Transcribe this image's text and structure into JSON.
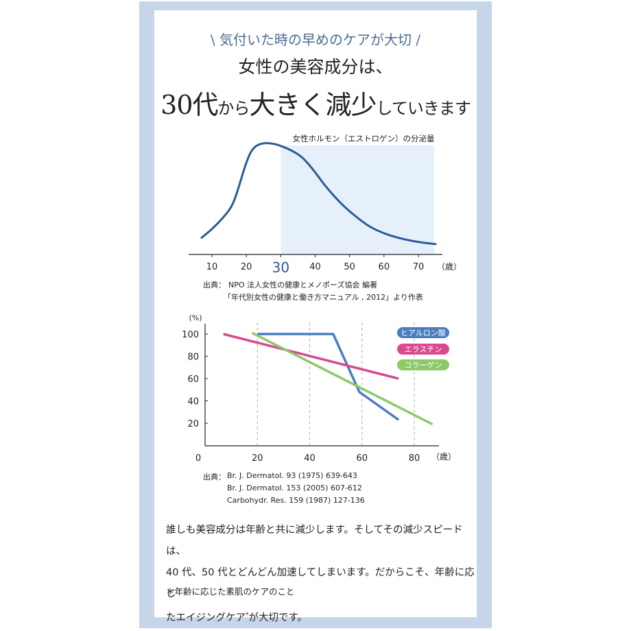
{
  "header": {
    "tagline_slash_left": "\\",
    "tagline": "気付いた時の早めのケアが大切",
    "tagline_slash_right": "/",
    "line1": "女性の美容成分は、",
    "line2_num": "30代",
    "line2_a": "から",
    "line2_b": "大きく減少",
    "line2_c": "していきます"
  },
  "chart_data": [
    {
      "type": "area",
      "title": "女性ホルモン（エストロゲン）の分泌量",
      "x_ticks": [
        "10",
        "20",
        "30",
        "40",
        "50",
        "60",
        "70"
      ],
      "highlight_tick": "30",
      "x_unit": "（歳）",
      "xlim": [
        5,
        75
      ],
      "highlight_range": [
        30,
        75
      ],
      "series": [
        {
          "x": [
            7,
            10,
            13,
            16,
            18,
            20,
            22,
            25,
            28,
            30,
            33,
            36,
            38,
            40,
            42,
            44,
            47,
            50,
            53,
            56,
            60,
            64,
            68,
            72,
            75
          ],
          "y": [
            10,
            18,
            28,
            40,
            60,
            82,
            96,
            100,
            99,
            97,
            93,
            87,
            80,
            72,
            63,
            55,
            44,
            35,
            27,
            20,
            14,
            10,
            7,
            5,
            4
          ]
        }
      ],
      "color": "#2a5b94",
      "highlight_color": "#e6f0fb",
      "source_label": "出典：",
      "source_lines": [
        "NPO 法人女性の健康とメノポーズ協会 編著",
        "「年代別女性の健康と働き方マニュアル , 2012」より作表"
      ]
    },
    {
      "type": "line",
      "y_unit": "(%)",
      "y_ticks": [
        "100",
        "80",
        "60",
        "40",
        "20"
      ],
      "x_ticks": [
        "0",
        "20",
        "40",
        "60",
        "80"
      ],
      "x_unit": "（歳）",
      "xlim": [
        0,
        90
      ],
      "ylim": [
        0,
        108
      ],
      "series": [
        {
          "name": "ヒアルロン酸",
          "color": "#4a7cc0",
          "x": [
            20,
            49,
            59,
            74
          ],
          "y": [
            100,
            100,
            48,
            23
          ]
        },
        {
          "name": "エラスチン",
          "color": "#d94a8e",
          "x": [
            7,
            74
          ],
          "y": [
            100,
            60
          ]
        },
        {
          "name": "コラーゲン",
          "color": "#8cc96a",
          "x": [
            18,
            87
          ],
          "y": [
            101,
            19
          ]
        }
      ],
      "source_label": "出典：",
      "source_lines": [
        "Br. J. Dermatol. 93 (1975) 639-643",
        "Br. J. Dermatol. 153 (2005) 607-612",
        "Carbohydr. Res. 159 (1987) 127-136"
      ]
    }
  ],
  "body": {
    "line1": "誰しも美容成分は年齢と共に減少します。そしてその減少スピードは、",
    "line2": "40 代、50 代とどんどん加速してしまいます。だからこそ、年齢に応じ",
    "line3_a": "たエイジングケア",
    "line3_sup": "*",
    "line3_b": "が大切です。",
    "note": "＊年齢に応じた素肌のケアのこと"
  }
}
